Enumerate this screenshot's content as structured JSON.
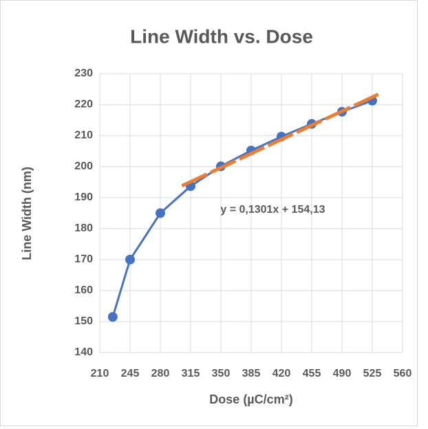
{
  "chart_data": {
    "type": "line",
    "title": "Line Width vs. Dose",
    "x_label": "Dose (µC/cm²)",
    "y_label": "Line Width (nm)",
    "x": [
      225,
      245,
      280,
      315,
      350,
      385,
      420,
      455,
      490,
      525
    ],
    "series": [
      {
        "name": "Line Width",
        "color": "#4472c4",
        "values": [
          151.5,
          170,
          185,
          193.7,
          200.1,
          205.2,
          209.7,
          213.8,
          217.7,
          221.3
        ]
      }
    ],
    "trendline": {
      "color": "#ed7d31",
      "x": [
        305,
        532
      ],
      "values": [
        193.81,
        223.34
      ],
      "label": "y = 0,1301x + 154,13",
      "label_x": 410,
      "label_y": 186
    },
    "xlim": [
      210,
      560
    ],
    "xticks": [
      210,
      245,
      280,
      315,
      350,
      385,
      420,
      455,
      490,
      525,
      560
    ],
    "ylim": [
      140,
      230
    ],
    "yticks": [
      140,
      150,
      160,
      170,
      180,
      190,
      200,
      210,
      220,
      230
    ],
    "grid": true
  }
}
